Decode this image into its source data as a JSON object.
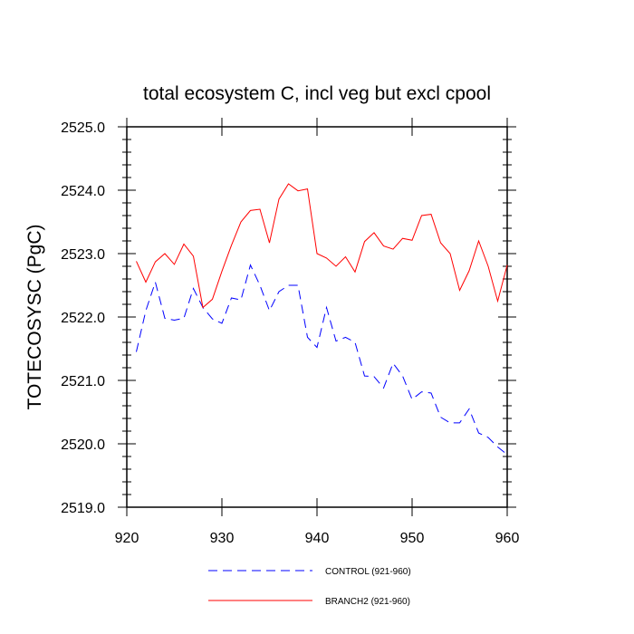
{
  "chart_data": {
    "type": "line",
    "title": "total ecosystem C, incl veg but excl cpool",
    "xlabel": "",
    "ylabel": "TOTECOSYSC  (PgC)",
    "xlim": [
      920,
      960
    ],
    "ylim": [
      2519.0,
      2525.0
    ],
    "x_ticks": [
      920,
      930,
      940,
      950,
      960
    ],
    "x_tick_labels": [
      "920",
      "930",
      "940",
      "950",
      "960"
    ],
    "y_ticks": [
      2519.0,
      2520.0,
      2521.0,
      2522.0,
      2523.0,
      2524.0,
      2525.0
    ],
    "y_tick_labels": [
      "2519.0",
      "2520.0",
      "2521.0",
      "2522.0",
      "2523.0",
      "2524.0",
      "2525.0"
    ],
    "grid": false,
    "legend_position": "bottom",
    "x": [
      921,
      922,
      923,
      924,
      925,
      926,
      927,
      928,
      929,
      930,
      931,
      932,
      933,
      934,
      935,
      936,
      937,
      938,
      939,
      940,
      941,
      942,
      943,
      944,
      945,
      946,
      947,
      948,
      949,
      950,
      951,
      952,
      953,
      954,
      955,
      956,
      957,
      958,
      959,
      960
    ],
    "series": [
      {
        "name": "CONTROL (921-960)",
        "color": "#0000ff",
        "dash": "dashed",
        "values": [
          2521.45,
          2522.1,
          2522.55,
          2521.98,
          2521.95,
          2521.98,
          2522.45,
          2522.15,
          2521.97,
          2521.9,
          2522.3,
          2522.27,
          2522.82,
          2522.5,
          2522.1,
          2522.4,
          2522.5,
          2522.5,
          2521.68,
          2521.52,
          2522.15,
          2521.62,
          2521.68,
          2521.6,
          2521.07,
          2521.06,
          2520.88,
          2521.27,
          2521.07,
          2520.7,
          2520.82,
          2520.8,
          2520.42,
          2520.33,
          2520.33,
          2520.55,
          2520.17,
          2520.1,
          2519.95,
          2519.83
        ]
      },
      {
        "name": "BRANCH2 (921-960)",
        "color": "#ff0000",
        "dash": "solid",
        "values": [
          2522.88,
          2522.55,
          2522.87,
          2523.0,
          2522.83,
          2523.15,
          2522.96,
          2522.15,
          2522.28,
          2522.72,
          2523.13,
          2523.5,
          2523.68,
          2523.7,
          2523.17,
          2523.86,
          2524.1,
          2523.99,
          2524.02,
          2523.0,
          2522.93,
          2522.8,
          2522.95,
          2522.71,
          2523.19,
          2523.33,
          2523.12,
          2523.07,
          2523.24,
          2523.21,
          2523.6,
          2523.62,
          2523.17,
          2523.0,
          2522.42,
          2522.73,
          2523.2,
          2522.8,
          2522.25,
          2522.82
        ]
      }
    ]
  }
}
